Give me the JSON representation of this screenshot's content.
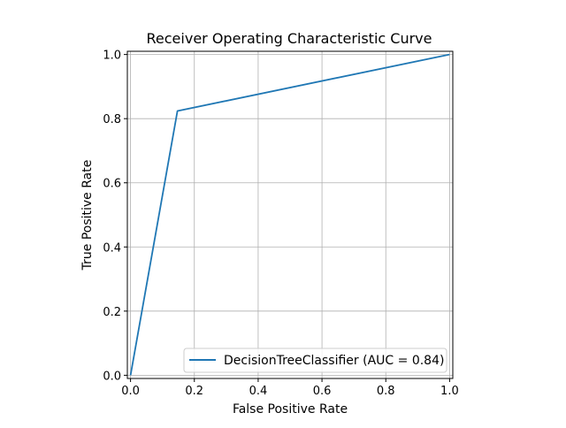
{
  "chart_data": {
    "type": "line",
    "title": "Receiver Operating Characteristic Curve",
    "xlabel": "False Positive Rate",
    "ylabel": "True Positive Rate",
    "xlim": [
      -0.01,
      1.01
    ],
    "ylim": [
      -0.01,
      1.01
    ],
    "grid": true,
    "x_ticks": [
      0.0,
      0.2,
      0.4,
      0.6,
      0.8,
      1.0
    ],
    "x_tick_labels": [
      "0.0",
      "0.2",
      "0.4",
      "0.6",
      "0.8",
      "1.0"
    ],
    "y_ticks": [
      0.0,
      0.2,
      0.4,
      0.6,
      0.8,
      1.0
    ],
    "y_tick_labels": [
      "0.0",
      "0.2",
      "0.4",
      "0.6",
      "0.8",
      "1.0"
    ],
    "legend_position": "lower-right",
    "series": [
      {
        "name": "DecisionTreeClassifier (AUC = 0.84)",
        "color": "#1f77b4",
        "x": [
          0.0,
          0.147,
          1.0
        ],
        "y": [
          0.0,
          0.824,
          1.0
        ]
      }
    ]
  }
}
